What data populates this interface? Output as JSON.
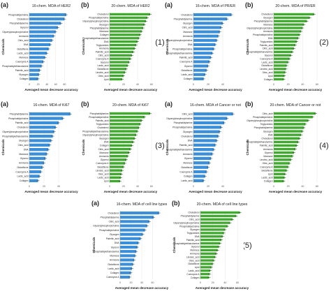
{
  "group_labels": [
    "(1)",
    "(2)",
    "(3)",
    "(4)",
    "(5)"
  ],
  "colors": {
    "blue": "#3b8fd9",
    "green": "#3faa2e",
    "grid": "#e6e6e6",
    "text": "#222222"
  },
  "chart_data": [
    {
      "type": "bar",
      "orientation": "horizontal",
      "panel_label": "(a)",
      "title": "16-chem. MDA of HER2",
      "xlabel": "Averaged mean decrease accuracy",
      "ylabel": "Chemicals",
      "xlim": [
        0,
        100
      ],
      "xticks": [
        0,
        20,
        40,
        60,
        80
      ],
      "color": "blue",
      "categories": [
        "Phosphatidylcholine",
        "Cholesterol",
        "Phosphatidylserine",
        "Glycerol",
        "Glycerylphosphorylcholine",
        "Ammonia",
        "Citric_acid",
        "DNA",
        "Glutathione",
        "Lactic_acid",
        "Mannose",
        "Coenzyme A",
        "Phosphatidylethanolamine",
        "Palmitic_acid",
        "Glycogen",
        "Collagen"
      ],
      "values": [
        84,
        80,
        72,
        65,
        60,
        56,
        52,
        48,
        44,
        40,
        36,
        32,
        28,
        24,
        22,
        20
      ]
    },
    {
      "type": "bar",
      "orientation": "horizontal",
      "panel_label": "(b)",
      "title": "20-chem. MDA of HER2",
      "xlabel": "Averaged mean decrease accuracy",
      "ylabel": "Chemicals",
      "xlim": [
        0,
        60
      ],
      "xticks": [
        0,
        20,
        40,
        60
      ],
      "color": "green",
      "categories": [
        "Cholesterol",
        "Phosphatidylcholine",
        "Glycerylphosphorylcholine",
        "Glycogen",
        "Phosphatidylserine",
        "Mannose",
        "Collagen",
        "Phosphatidylethanolamine",
        "DNA",
        "Triglycerides",
        "Ammonia",
        "Palmitic_acid",
        "Citric_acid",
        "Coenzyme A",
        "Glycerol",
        "Lactic_acid",
        "Glutathione",
        "Linoleic_acid",
        "Oleic_acid",
        "Lipid"
      ],
      "values": [
        58,
        54,
        52,
        50,
        48,
        46,
        44,
        42,
        40,
        38,
        36,
        34,
        32,
        30,
        28,
        26,
        24,
        22,
        20,
        18
      ]
    },
    {
      "type": "bar",
      "orientation": "horizontal",
      "panel_label": "(a)",
      "title": "16-chem. MDA of PR/ER",
      "xlabel": "Averaged mean decrease accuracy",
      "ylabel": "Chemicals",
      "xlim": [
        0,
        60
      ],
      "xticks": [
        0,
        20,
        40
      ],
      "color": "blue",
      "categories": [
        "Cholesterol",
        "Phosphatidylserine",
        "Glycogen",
        "Citric_acid",
        "Mannose",
        "Ammonia",
        "Glycerylphosphorylcholine",
        "DNA",
        "Phosphatidylcholine",
        "Phosphatidylethanolamine",
        "Palmitic_acid",
        "Coenzyme A",
        "Glycerol",
        "Glutathione",
        "Lactic_acid",
        "Collagen"
      ],
      "values": [
        52,
        46,
        40,
        38,
        36,
        34,
        32,
        30,
        28,
        26,
        24,
        22,
        20,
        18,
        16,
        14
      ]
    },
    {
      "type": "bar",
      "orientation": "horizontal",
      "panel_label": "(b)",
      "title": "20-chem. MDA of PR/ER",
      "xlabel": "Averaged mean decrease accuracy",
      "ylabel": "Chemicals",
      "xlim": [
        0,
        60
      ],
      "xticks": [
        0,
        20,
        40,
        60
      ],
      "color": "green",
      "categories": [
        "Cholesterol",
        "Glycogen",
        "Phosphatidylserine",
        "Mannose",
        "Glycerylphosphorylcholine",
        "Ammonia",
        "Phosphatidylcholine",
        "DNA",
        "Triglycerides",
        "Palmitic_acid",
        "Citric_acid",
        "Phosphatidylethanolamine",
        "Glycerol",
        "Coenzyme A",
        "Lactic_acid",
        "Glutathione",
        "Linoleic_acid",
        "Oleic_acid",
        "Lipid",
        "Collagen"
      ],
      "values": [
        56,
        50,
        46,
        42,
        40,
        38,
        36,
        34,
        32,
        30,
        28,
        26,
        24,
        22,
        20,
        18,
        17,
        16,
        15,
        14
      ]
    },
    {
      "type": "bar",
      "orientation": "horizontal",
      "panel_label": "(a)",
      "title": "16-chem. MDA of Ki67",
      "xlabel": "Averaged mean decrease accuracy",
      "ylabel": "Chemicals",
      "xlim": [
        0,
        60
      ],
      "xticks": [
        0,
        20,
        40
      ],
      "color": "blue",
      "categories": [
        "Phosphatidylserine",
        "Phosphatidylcholine",
        "Palmitic_acid",
        "Cholesterol",
        "Glycerylphosphorylcholine",
        "Phosphatidylethanolamine",
        "Glycogen",
        "Citric_acid",
        "DNA",
        "Mannose",
        "Glycerol",
        "Ammonia",
        "Glutathione",
        "Coenzyme A",
        "Lactic_acid",
        "Collagen"
      ],
      "values": [
        56,
        46,
        40,
        36,
        34,
        32,
        30,
        28,
        26,
        24,
        22,
        20,
        18,
        16,
        14,
        12
      ]
    },
    {
      "type": "bar",
      "orientation": "horizontal",
      "panel_label": "(b)",
      "title": "20-chem. MDA of Ki67",
      "xlabel": "Averaged mean decrease accuracy",
      "ylabel": "Chemicals",
      "xlim": [
        0,
        60
      ],
      "xticks": [
        0,
        20,
        40,
        60
      ],
      "color": "green",
      "categories": [
        "Phosphatidylserine",
        "Phosphatidylcholine",
        "Palmitic_acid",
        "Triglycerides",
        "Cholesterol",
        "Phosphatidylethanolamine",
        "Glycerylphosphorylcholine",
        "Glycogen",
        "DNA",
        "Collagen",
        "Citric_acid",
        "Mannose",
        "Ammonia",
        "Glycerol",
        "Coenzyme A",
        "Glutathione",
        "Linoleic_acid",
        "Oleic_acid",
        "Lactic_acid",
        "Lipid"
      ],
      "values": [
        58,
        50,
        46,
        44,
        42,
        40,
        38,
        36,
        34,
        32,
        30,
        28,
        26,
        24,
        22,
        20,
        18,
        17,
        16,
        15
      ]
    },
    {
      "type": "bar",
      "orientation": "horizontal",
      "panel_label": "(a)",
      "title": "16-chem. MDA of Cancer or not",
      "xlabel": "Averaged mean decrease accuracy",
      "ylabel": "Chemicals",
      "xlim": [
        0,
        60
      ],
      "xticks": [
        0,
        20,
        40
      ],
      "color": "blue",
      "categories": [
        "Citric_acid",
        "Glycerylphosphorylcholine",
        "Phosphatidylserine",
        "Phosphatidylcholine",
        "Glycogen",
        "Cholesterol",
        "DNA",
        "Palmitic_acid",
        "Phosphatidylethanolamine",
        "Ammonia",
        "Glycerol",
        "Mannose",
        "Glutathione",
        "Coenzyme A",
        "Collagen",
        "Lactic_acid"
      ],
      "values": [
        54,
        46,
        42,
        38,
        36,
        34,
        32,
        30,
        28,
        26,
        24,
        22,
        20,
        18,
        16,
        14
      ]
    },
    {
      "type": "bar",
      "orientation": "horizontal",
      "panel_label": "(b)",
      "title": "20-chem. MDA of Cancer or not",
      "xlabel": "Averaged mean decrease accuracy",
      "ylabel": "Chemicals",
      "xlim": [
        0,
        60
      ],
      "xticks": [
        0,
        20,
        40,
        60
      ],
      "color": "green",
      "categories": [
        "Citric_acid",
        "Phosphatidylcholine",
        "Glycerylphosphorylcholine",
        "Triglycerides",
        "Phosphatidylserine",
        "Glycogen",
        "DNA",
        "Cholesterol",
        "Phosphatidylethanolamine",
        "Palmitic_acid",
        "Ammonia",
        "Glycerol",
        "Mannose",
        "Linoleic_acid",
        "Oleic_acid",
        "Coenzyme A",
        "Glutathione",
        "Lipid",
        "Lactic_acid",
        "Collagen"
      ],
      "values": [
        58,
        54,
        48,
        44,
        42,
        40,
        38,
        36,
        34,
        32,
        30,
        28,
        26,
        24,
        22,
        20,
        18,
        16,
        15,
        14
      ]
    },
    {
      "type": "bar",
      "orientation": "horizontal",
      "panel_label": "(a)",
      "title": "16-chem. MDA of cell line types",
      "xlabel": "Averaged mean decrease accuracy",
      "ylabel": "Chemicals",
      "xlim": [
        0,
        80
      ],
      "xticks": [
        0,
        20,
        40,
        60
      ],
      "color": "blue",
      "categories": [
        "Cholesterol",
        "Phosphatidylserine",
        "Citric_acid",
        "Glycerylphosphorylcholine",
        "Phosphatidylcholine",
        "Glycogen",
        "Palmitic_acid",
        "DNA",
        "Glycerol",
        "Phosphatidylethanolamine",
        "Mannose",
        "Ammonia",
        "Glutathione",
        "Lactic_acid",
        "Collagen",
        "Coenzyme A"
      ],
      "values": [
        72,
        62,
        54,
        50,
        46,
        42,
        38,
        34,
        32,
        30,
        28,
        26,
        24,
        22,
        20,
        18
      ]
    },
    {
      "type": "bar",
      "orientation": "horizontal",
      "panel_label": "(b)",
      "title": "20-chem. MDA of cell line types",
      "xlabel": "Averaged mean decrease accuracy",
      "ylabel": "Chemicals",
      "xlim": [
        0,
        70
      ],
      "xticks": [
        0,
        20,
        40,
        60
      ],
      "color": "green",
      "categories": [
        "Cholesterol",
        "Phosphatidylserine",
        "Citric_acid",
        "Glycerylphosphorylcholine",
        "Phosphatidylcholine",
        "Glycogen",
        "Triglycerides",
        "DNA",
        "Palmitic_acid",
        "Phosphatidylethanolamine",
        "Glycerol",
        "Mannose",
        "Ammonia",
        "Linoleic_acid",
        "Oleic_acid",
        "Glutathione",
        "Lipid",
        "Lactic_acid",
        "Coenzyme A",
        "Collagen"
      ],
      "values": [
        64,
        58,
        52,
        48,
        44,
        40,
        38,
        36,
        34,
        32,
        30,
        28,
        26,
        24,
        22,
        20,
        18,
        16,
        15,
        14
      ]
    }
  ]
}
